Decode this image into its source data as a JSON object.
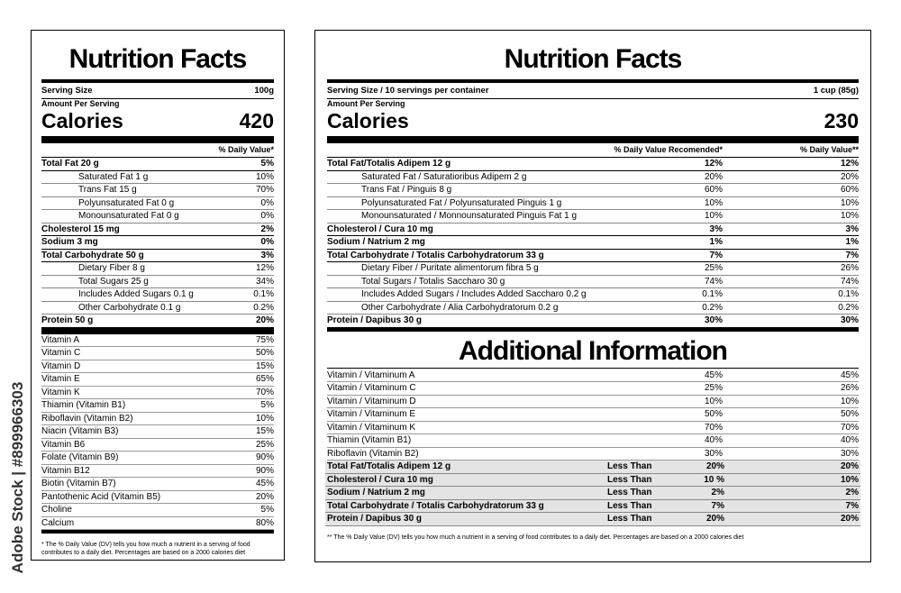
{
  "watermark": "Adobe Stock | #899966303",
  "left_label": {
    "title": "Nutrition Facts",
    "serving_size_label": "Serving Size",
    "serving_size_value": "100g",
    "amount_per_serving": "Amount Per Serving",
    "calories_label": "Calories",
    "calories_value": 420,
    "daily_value_header": "% Daily Value*",
    "nutrients": [
      {
        "name": "Total Fat 20 g",
        "daily_value": "5%",
        "sub": [
          {
            "name": "Saturated Fat 1 g",
            "daily_value": "10%"
          },
          {
            "name": "Trans Fat 15 g",
            "daily_value": "70%"
          },
          {
            "name": "Polyunsaturated Fat 0 g",
            "daily_value": "0%"
          },
          {
            "name": "Monounsaturated Fat 0 g",
            "daily_value": "0%"
          }
        ]
      },
      {
        "name": "Cholesterol 15 mg",
        "daily_value": "2%"
      },
      {
        "name": "Sodium 3 mg",
        "daily_value": "0%"
      },
      {
        "name": "Total Carbohydrate 50 g",
        "daily_value": "3%",
        "sub": [
          {
            "name": "Dietary Fiber 8 g",
            "daily_value": "12%"
          },
          {
            "name": "Total Sugars 25 g",
            "daily_value": "34%"
          },
          {
            "name": "Includes Added Sugars 0.1 g",
            "daily_value": "0.1%"
          },
          {
            "name": "Other Carbohydrate 0.1 g",
            "daily_value": "0.2%"
          }
        ]
      },
      {
        "name": "Protein 50 g",
        "daily_value": "20%"
      }
    ],
    "vitamins": [
      {
        "name": "Vitamin A",
        "daily_value": "75%"
      },
      {
        "name": "Vitamin C",
        "daily_value": "50%"
      },
      {
        "name": "Vitamin D",
        "daily_value": "15%"
      },
      {
        "name": "Vitamin E",
        "daily_value": "65%"
      },
      {
        "name": "Vitamin K",
        "daily_value": "70%"
      },
      {
        "name": "Thiamin (Vitamin B1)",
        "daily_value": "5%"
      },
      {
        "name": "Riboflavin (Vitamin B2)",
        "daily_value": "10%"
      },
      {
        "name": "Niacin (Vitamin B3)",
        "daily_value": "15%"
      },
      {
        "name": "Vitamin B6",
        "daily_value": "25%"
      },
      {
        "name": "Folate (Vitamin B9)",
        "daily_value": "90%"
      },
      {
        "name": "Vitamin B12",
        "daily_value": "90%"
      },
      {
        "name": "Biotin (Vitamin B7)",
        "daily_value": "45%"
      },
      {
        "name": "Pantothenic Acid (Vitamin B5)",
        "daily_value": "20%"
      },
      {
        "name": "Choline",
        "daily_value": "5%"
      },
      {
        "name": "Calcium",
        "daily_value": "80%"
      }
    ],
    "footnote": "* The % Daily Value (DV) tells you how much a nutrient in a serving of food contributes to a daily diet. Percentages are based on a 2000 calories diet"
  },
  "right_label": {
    "title": "Nutrition Facts",
    "serving_size_label": "Serving Size / 10 servings per container",
    "serving_size_value": "1 cup (85g)",
    "amount_per_serving": "Amount Per Serving",
    "calories_label": "Calories",
    "calories_value": 230,
    "daily_value_recommended_header": "% Daily Value Recomended*",
    "daily_value_header": "% Daily Value**",
    "nutrients": [
      {
        "name": "Total Fat/Totalis Adipem 12 g",
        "daily_value_recommended": "12%",
        "daily_value": "12%",
        "sub": [
          {
            "name": "Saturated Fat / Saturatioribus Adipem 2 g",
            "daily_value_recommended": "20%",
            "daily_value": "20%"
          },
          {
            "name": "Trans Fat / Pinguis 8 g",
            "daily_value_recommended": "60%",
            "daily_value": "60%"
          },
          {
            "name": "Polyunsaturated Fat / Polyunsaturated  Pinguis  1 g",
            "daily_value_recommended": "10%",
            "daily_value": "10%"
          },
          {
            "name": "Monounsaturated / Monnounsaturated Pinguis Fat 1 g",
            "daily_value_recommended": "10%",
            "daily_value": "10%"
          }
        ]
      },
      {
        "name": "Cholesterol / Cura 10 mg",
        "daily_value_recommended": "3%",
        "daily_value": "3%"
      },
      {
        "name": "Sodium / Natrium 2 mg",
        "daily_value_recommended": "1%",
        "daily_value": "1%"
      },
      {
        "name": "Total Carbohydrate / Totalis Carbohydratorum 33 g",
        "daily_value_recommended": "7%",
        "daily_value": "7%",
        "sub": [
          {
            "name": "Dietary Fiber / Puritate alimentorum fibra 5 g",
            "daily_value_recommended": "25%",
            "daily_value": "26%"
          },
          {
            "name": "Total Sugars / Totalis Saccharo 30 g",
            "daily_value_recommended": "74%",
            "daily_value": "74%"
          },
          {
            "name": "Includes Added Sugars / Includes Added Saccharo 0.2 g",
            "daily_value_recommended": "0.1%",
            "daily_value": "0.1%"
          },
          {
            "name": "Other Carbohydrate  / Alia Carbohydratorum 0.2 g",
            "daily_value_recommended": "0.2%",
            "daily_value": "0.2%"
          }
        ]
      },
      {
        "name": "Protein / Dapibus 30 g",
        "daily_value_recommended": "30%",
        "daily_value": "30%"
      }
    ],
    "additional_information": {
      "title": "Additional Information",
      "vitamins": [
        {
          "name": "Vitamin / Vitaminum A",
          "daily_value_recommended": "45%",
          "daily_value": "45%"
        },
        {
          "name": "Vitamin / Vitaminum C",
          "daily_value_recommended": "25%",
          "daily_value": "26%"
        },
        {
          "name": "Vitamin / Vitaminum D",
          "daily_value_recommended": "10%",
          "daily_value": "10%"
        },
        {
          "name": "Vitamin / Vitaminum E",
          "daily_value_recommended": "50%",
          "daily_value": "50%"
        },
        {
          "name": "Vitamin / Vitaminum K",
          "daily_value_recommended": "70%",
          "daily_value": "70%"
        },
        {
          "name": "Thiamin (Vitamin B1)",
          "daily_value_recommended": "40%",
          "daily_value": "40%"
        },
        {
          "name": "Riboflavin (Vitamin B2)",
          "daily_value_recommended": "30%",
          "daily_value": "30%"
        }
      ],
      "limits": [
        {
          "name": "Total Fat/Totalis Adipem 12 g",
          "qualifier": "Less Than",
          "daily_value_recommended": "20%",
          "daily_value": "20%"
        },
        {
          "name": "Cholesterol / Cura 10 mg",
          "qualifier": "Less Than",
          "daily_value_recommended": "10 %",
          "daily_value": "10%"
        },
        {
          "name": "Sodium / Natrium 2 mg",
          "qualifier": "Less Than",
          "daily_value_recommended": "2%",
          "daily_value": "2%"
        },
        {
          "name": "Total Carbohydrate / Totalis Carbohydratorum 33 g",
          "qualifier": "Less Than",
          "daily_value_recommended": "7%",
          "daily_value": "7%"
        },
        {
          "name": "Protein / Dapibus 30 g",
          "qualifier": "Less Than",
          "daily_value_recommended": "20%",
          "daily_value": "20%"
        }
      ]
    },
    "footnote": "** The % Daily Value (DV) tells you how much a nutrient in a serving of food contributes to a daily diet. Percentages are based on a 2000 calories diet"
  }
}
